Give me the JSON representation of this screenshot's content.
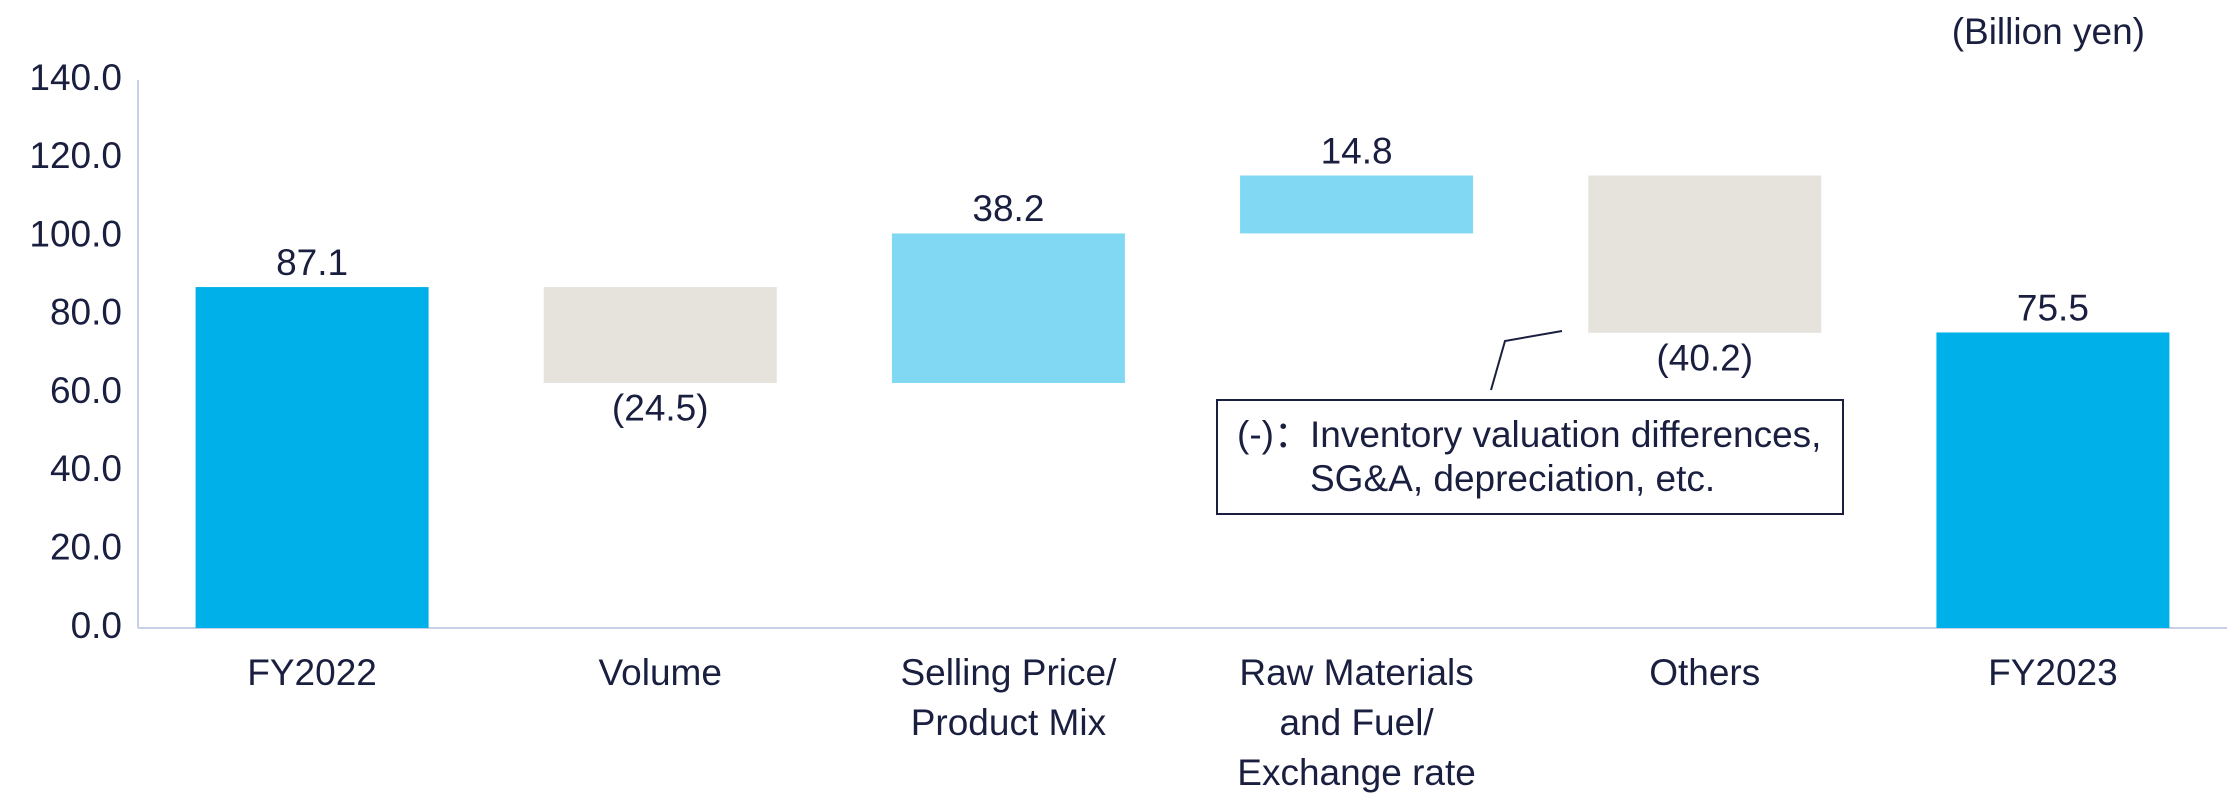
{
  "chart_data": {
    "type": "waterfall",
    "unit_label": "(Billion yen)",
    "categories": [
      "FY2022",
      "Volume",
      "Selling Price/\nProduct Mix",
      "Raw Materials\nand Fuel/\nExchange rate",
      "Others",
      "FY2023"
    ],
    "values": [
      87.1,
      -24.5,
      38.2,
      14.8,
      -40.2,
      75.5
    ],
    "value_labels": [
      "87.1",
      "(24.5)",
      "38.2",
      "14.8",
      "(40.2)",
      "75.5"
    ],
    "is_total": [
      true,
      false,
      false,
      false,
      false,
      true
    ],
    "colors": {
      "total": "#00b0e8",
      "increase": "#80d8f2",
      "decrease": "#e6e3dd"
    },
    "ylim": [
      0,
      140
    ],
    "yticks": [
      {
        "value": 0,
        "label": "0.0"
      },
      {
        "value": 20,
        "label": "20.0"
      },
      {
        "value": 40,
        "label": "40.0"
      },
      {
        "value": 60,
        "label": "60.0"
      },
      {
        "value": 80,
        "label": "80.0"
      },
      {
        "value": 100,
        "label": "100.0"
      },
      {
        "value": 120,
        "label": "120.0"
      },
      {
        "value": 140,
        "label": "140.0"
      }
    ],
    "grid": false,
    "annotation": {
      "prefix": "(-)：",
      "lines": [
        "Inventory valuation differences,",
        "SG&A, depreciation, etc."
      ]
    }
  }
}
